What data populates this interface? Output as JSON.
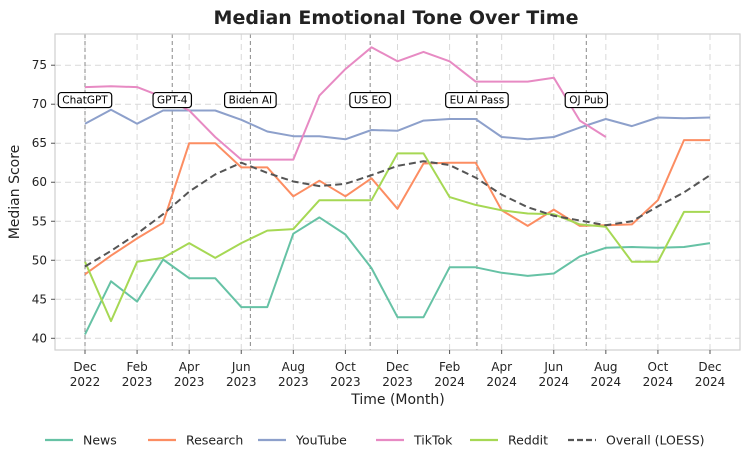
{
  "chart_data": {
    "type": "line",
    "title": "Median Emotional Tone Over Time",
    "xlabel": "Time (Month)",
    "ylabel": "Median Score",
    "ylim": [
      38.5,
      79
    ],
    "yticks": [
      40,
      45,
      50,
      55,
      60,
      65,
      70,
      75
    ],
    "x_months": [
      "2022-12",
      "2023-01",
      "2023-02",
      "2023-03",
      "2023-04",
      "2023-05",
      "2023-06",
      "2023-07",
      "2023-08",
      "2023-09",
      "2023-10",
      "2023-11",
      "2023-12",
      "2024-01",
      "2024-02",
      "2024-03",
      "2024-04",
      "2024-05",
      "2024-06",
      "2024-07",
      "2024-08",
      "2024-09",
      "2024-10",
      "2024-11",
      "2024-12"
    ],
    "xticks": [
      {
        "month_index": 0,
        "line1": "Dec",
        "line2": "2022"
      },
      {
        "month_index": 2,
        "line1": "Feb",
        "line2": "2023"
      },
      {
        "month_index": 4,
        "line1": "Apr",
        "line2": "2023"
      },
      {
        "month_index": 6,
        "line1": "Jun",
        "line2": "2023"
      },
      {
        "month_index": 8,
        "line1": "Aug",
        "line2": "2023"
      },
      {
        "month_index": 10,
        "line1": "Oct",
        "line2": "2023"
      },
      {
        "month_index": 12,
        "line1": "Dec",
        "line2": "2023"
      },
      {
        "month_index": 14,
        "line1": "Feb",
        "line2": "2024"
      },
      {
        "month_index": 16,
        "line1": "Apr",
        "line2": "2024"
      },
      {
        "month_index": 18,
        "line1": "Jun",
        "line2": "2024"
      },
      {
        "month_index": 20,
        "line1": "Aug",
        "line2": "2024"
      },
      {
        "month_index": 22,
        "line1": "Oct",
        "line2": "2024"
      },
      {
        "month_index": 24,
        "line1": "Dec",
        "line2": "2024"
      }
    ],
    "grid": true,
    "legend_position": "bottom",
    "series": [
      {
        "name": "News",
        "color": "#66c2a5",
        "dash": false,
        "x": [
          0,
          1,
          2,
          3,
          4,
          5,
          6,
          7,
          8,
          9,
          10,
          11,
          12,
          13,
          14,
          15,
          16,
          17,
          18,
          19,
          20,
          21,
          22,
          23,
          24
        ],
        "values": [
          40.5,
          47.3,
          44.7,
          50.1,
          47.7,
          47.7,
          44.0,
          44.0,
          53.4,
          55.5,
          53.3,
          49.0,
          42.7,
          42.7,
          49.1,
          49.1,
          48.4,
          48.0,
          48.3,
          50.5,
          51.6,
          51.7,
          51.6,
          51.7,
          52.2
        ]
      },
      {
        "name": "Research",
        "color": "#fc8d62",
        "dash": false,
        "x": [
          0,
          1,
          2,
          3,
          4,
          5,
          6,
          7,
          8,
          9,
          10,
          11,
          12,
          13,
          14,
          15,
          16,
          17,
          18,
          19,
          20,
          21,
          22,
          23,
          24
        ],
        "values": [
          48.2,
          50.6,
          52.8,
          54.8,
          65.0,
          65.0,
          61.9,
          61.9,
          58.2,
          60.2,
          58.2,
          60.5,
          56.6,
          62.4,
          62.5,
          62.5,
          56.4,
          54.4,
          56.5,
          54.4,
          54.5,
          54.6,
          57.7,
          65.4,
          65.4
        ]
      },
      {
        "name": "YouTube",
        "color": "#8da0cb",
        "dash": false,
        "x": [
          0,
          1,
          2,
          3,
          4,
          5,
          6,
          7,
          8,
          9,
          10,
          11,
          12,
          13,
          14,
          15,
          16,
          17,
          18,
          19,
          20,
          21,
          22,
          23,
          24
        ],
        "values": [
          67.5,
          69.3,
          67.5,
          69.2,
          69.2,
          69.2,
          68.0,
          66.5,
          65.9,
          65.9,
          65.5,
          66.7,
          66.6,
          67.9,
          68.1,
          68.1,
          65.8,
          65.5,
          65.8,
          67.0,
          68.1,
          67.2,
          68.3,
          68.2,
          68.3
        ]
      },
      {
        "name": "TikTok",
        "color": "#e78ac3",
        "dash": false,
        "x": [
          0,
          1,
          2,
          3,
          4,
          5,
          6,
          7,
          8,
          9,
          10,
          11,
          12,
          13,
          14,
          15,
          16,
          17,
          18,
          19,
          20
        ],
        "values": [
          72.2,
          72.3,
          72.2,
          70.9,
          69.2,
          65.8,
          62.9,
          62.9,
          62.9,
          71.1,
          74.5,
          77.3,
          75.5,
          76.7,
          75.5,
          72.9,
          72.9,
          72.9,
          73.4,
          67.9,
          65.8
        ]
      },
      {
        "name": "Reddit",
        "color": "#a6d854",
        "dash": false,
        "x": [
          0,
          1,
          2,
          3,
          4,
          5,
          6,
          7,
          8,
          9,
          10,
          11,
          12,
          13,
          14,
          15,
          16,
          17,
          18,
          19,
          20,
          21,
          22,
          23,
          24
        ],
        "values": [
          49.8,
          42.2,
          49.8,
          50.3,
          52.2,
          50.3,
          52.2,
          53.8,
          54.0,
          57.7,
          57.7,
          57.7,
          63.7,
          63.7,
          58.1,
          57.1,
          56.4,
          56.0,
          55.9,
          54.6,
          54.3,
          49.8,
          49.8,
          56.2,
          56.2
        ]
      },
      {
        "name": "Overall (LOESS)",
        "color": "#555555",
        "dash": true,
        "x": [
          0,
          1,
          2,
          3,
          4,
          5,
          6,
          7,
          8,
          9,
          10,
          11,
          12,
          13,
          14,
          15,
          16,
          17,
          18,
          19,
          20,
          21,
          22,
          23,
          24
        ],
        "values": [
          49.2,
          51.2,
          53.4,
          55.9,
          58.8,
          61.0,
          62.5,
          61.2,
          60.1,
          59.5,
          59.8,
          60.9,
          62.1,
          62.7,
          62.2,
          60.6,
          58.4,
          56.8,
          55.7,
          55.1,
          54.5,
          55.0,
          56.9,
          58.7,
          60.9
        ]
      }
    ],
    "events": [
      {
        "label": "ChatGPT",
        "month_pos": 0.0
      },
      {
        "label": "GPT-4",
        "month_pos": 3.35
      },
      {
        "label": "Biden AI",
        "month_pos": 6.35
      },
      {
        "label": "US EO",
        "month_pos": 10.95
      },
      {
        "label": "EU AI Pass",
        "month_pos": 15.05
      },
      {
        "label": "OJ Pub",
        "month_pos": 19.25
      }
    ],
    "event_label_value": 70.6
  }
}
